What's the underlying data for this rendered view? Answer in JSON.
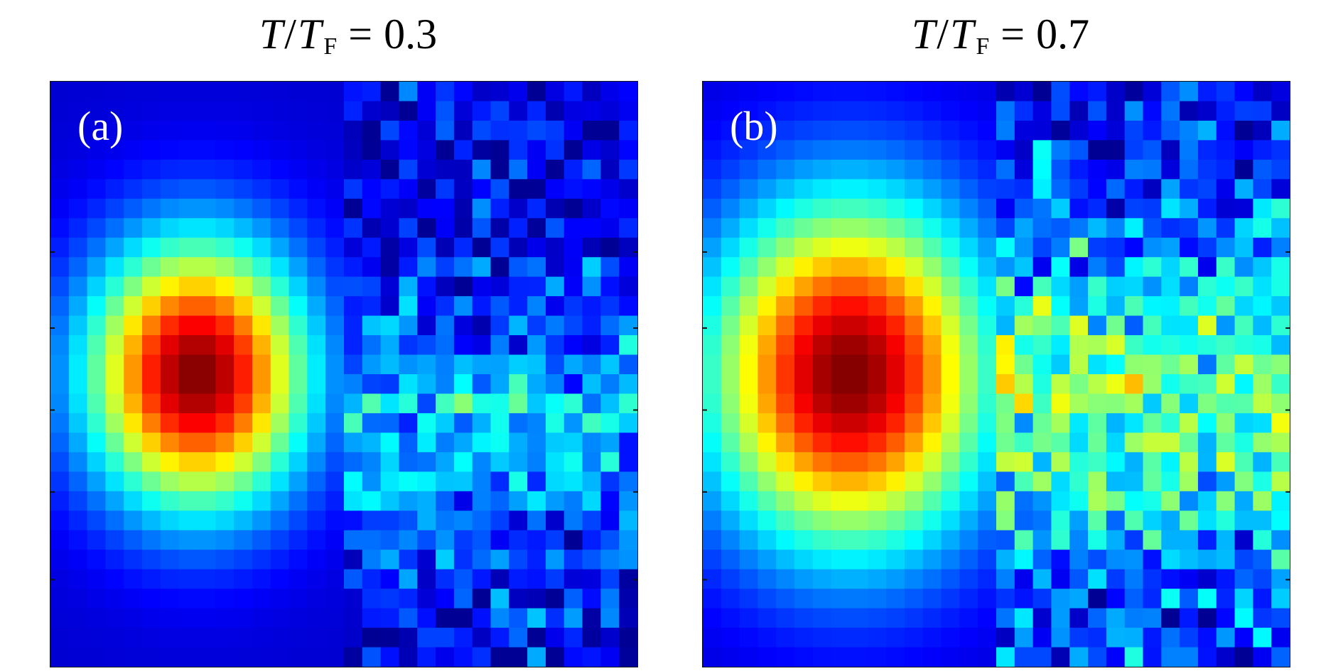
{
  "figure": {
    "panels": [
      {
        "label": "(a)",
        "title": {
          "T": "T",
          "slash": "/",
          "TF": "T",
          "sub": "F",
          "eq": "=",
          "value": "0.3"
        }
      },
      {
        "label": "(b)",
        "title": {
          "T": "T",
          "slash": "/",
          "TF": "T",
          "sub": "F",
          "eq": "=",
          "value": "0.7"
        }
      }
    ]
  },
  "chart_data": [
    {
      "type": "heatmap",
      "title": "T/T_F = 0.3",
      "panel_label": "(a)",
      "colormap": "jet",
      "value_range": [
        0,
        1
      ],
      "left_half": {
        "description_free": true,
        "model": "gaussian",
        "cols": 16,
        "rows": 30,
        "peak": 1.0,
        "center": [
          7.5,
          14.5
        ],
        "sigma": [
          4.2,
          4.8
        ],
        "baseline": 0.08
      },
      "right_half": {
        "model": "noisy",
        "cols": 16,
        "rows": 30,
        "mean_profile_peak": 0.33,
        "center_row": 17.5,
        "sigma_row": 4.5,
        "baseline": 0.1,
        "noise": 0.08,
        "seed": 7
      }
    },
    {
      "type": "heatmap",
      "title": "T/T_F = 0.7",
      "panel_label": "(b)",
      "colormap": "jet",
      "value_range": [
        0,
        1
      ],
      "left_half": {
        "model": "gaussian",
        "cols": 16,
        "rows": 30,
        "peak": 1.0,
        "center": [
          7.5,
          14.5
        ],
        "sigma": [
          5.4,
          6.2
        ],
        "baseline": 0.08
      },
      "right_half": {
        "model": "noisy",
        "cols": 16,
        "rows": 30,
        "mean_profile_peak": 0.48,
        "center_row": 15.5,
        "sigma_row": 6.0,
        "baseline": 0.12,
        "noise": 0.1,
        "seed": 19
      }
    }
  ]
}
